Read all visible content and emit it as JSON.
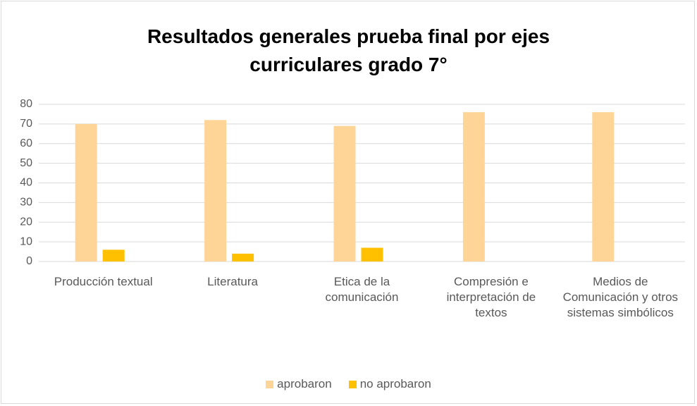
{
  "chart_data": {
    "type": "bar",
    "title": "Resultados generales prueba final por ejes curriculares grado 7°",
    "categories": [
      "Producción textual",
      "Literatura",
      "Etica de la comunicación",
      "Compresión e interpretación de textos",
      "Medios de Comunicación y otros sistemas simbólicos"
    ],
    "series": [
      {
        "name": "aprobaron",
        "color": "#ffd597",
        "values": [
          70,
          72,
          69,
          76,
          76
        ]
      },
      {
        "name": "no aprobaron",
        "color": "#ffc000",
        "values": [
          6,
          4,
          7,
          0,
          0
        ]
      }
    ],
    "ylim": [
      0,
      80
    ],
    "yticks": [
      0,
      10,
      20,
      30,
      40,
      50,
      60,
      70,
      80
    ],
    "grid": true,
    "legend": "bottom"
  }
}
